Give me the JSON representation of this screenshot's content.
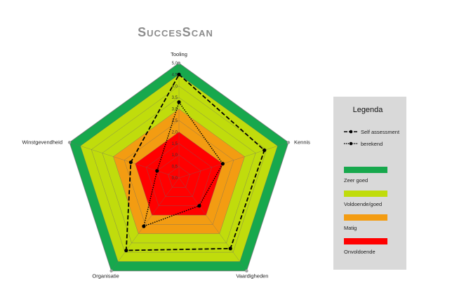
{
  "chart_data": {
    "type": "radar",
    "title": "SuccesScan",
    "axes": [
      "Tooling",
      "Kennis",
      "Vaardigheden",
      "Organisatie",
      "Winstgevendheid"
    ],
    "rlim": [
      0,
      5
    ],
    "ticks": [
      "0,0",
      "0,5",
      "1,0",
      "1,5",
      "2,0",
      "2,5",
      "3,0",
      "3,5",
      "4,0",
      "4,5",
      "5,0"
    ],
    "bands": [
      {
        "name": "Onvoldoende",
        "from": 0,
        "to": 2.0,
        "color": "#ff0000"
      },
      {
        "name": "Matig",
        "from": 2.0,
        "to": 3.0,
        "color": "#f39c12"
      },
      {
        "name": "Voldoende/goed",
        "from": 3.0,
        "to": 4.5,
        "color": "#c0dc0c"
      },
      {
        "name": "Zeer goed",
        "from": 4.5,
        "to": 5.0,
        "color": "#17a84d"
      }
    ],
    "series": [
      {
        "name": "Self assessment",
        "style": "dashed",
        "values": [
          4.5,
          3.9,
          3.8,
          3.9,
          2.2
        ]
      },
      {
        "name": "berekend",
        "style": "dotted",
        "values": [
          3.3,
          2.0,
          1.5,
          2.6,
          1.0
        ]
      }
    ],
    "legend_position": "right"
  },
  "legend": {
    "title": "Legenda",
    "series_labels": [
      "Self assessment",
      "berekend"
    ],
    "band_labels": [
      "Zeer goed",
      "Voldoende/goed",
      "Matig",
      "Onvoldoende"
    ]
  }
}
